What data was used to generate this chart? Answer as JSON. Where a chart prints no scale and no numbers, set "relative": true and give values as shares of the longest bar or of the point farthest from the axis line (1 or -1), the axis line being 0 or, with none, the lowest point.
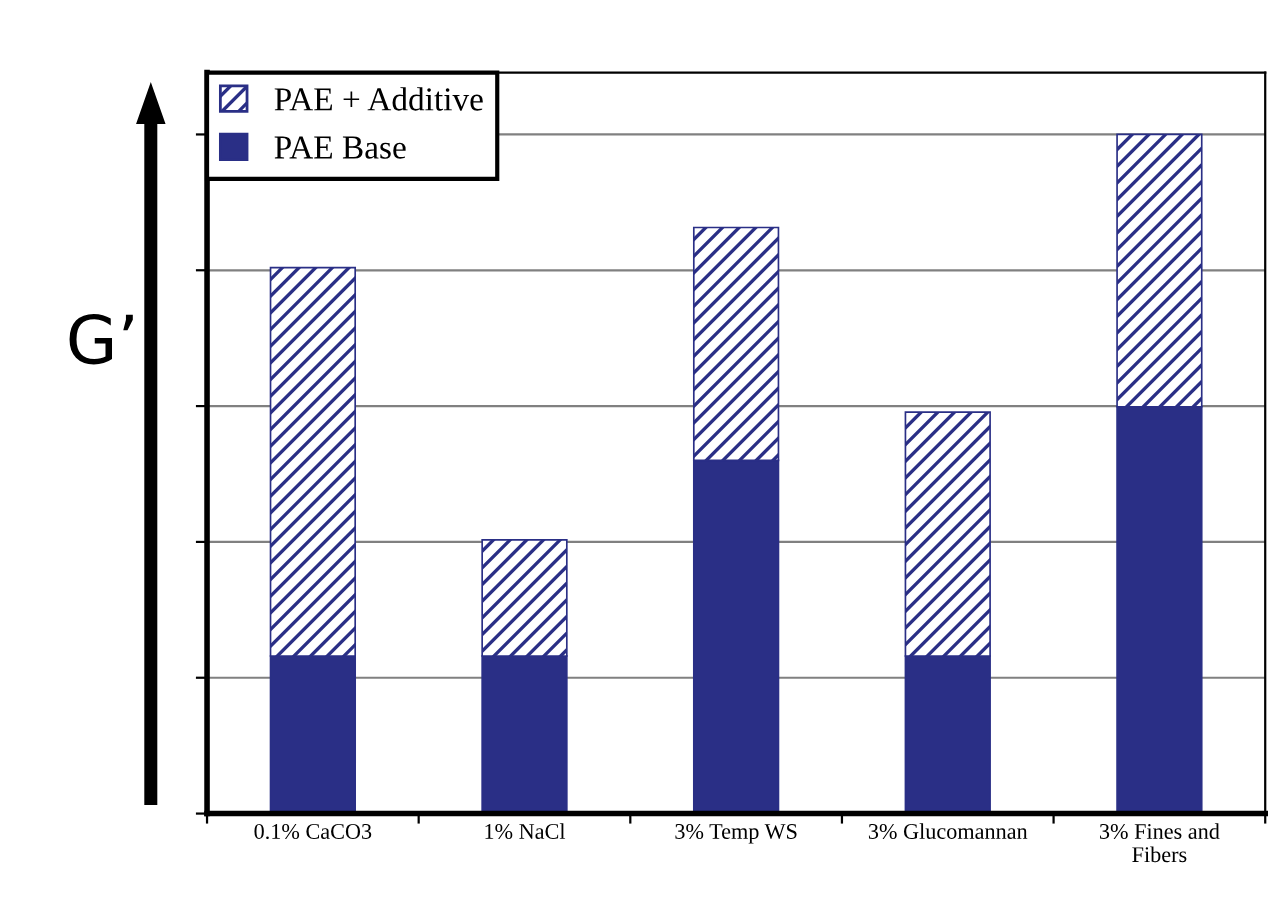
{
  "chart_data": {
    "type": "bar",
    "stacked": true,
    "relative": true,
    "ylabel": "G’",
    "categories": [
      "0.1% CaCO3",
      "1% NaCl",
      "3% Temp WS",
      "3% Glucomannan",
      "3% Fines and\nFibers"
    ],
    "series": [
      {
        "name": "PAE Base",
        "color": "#2a2f86",
        "values": [
          0.232,
          0.232,
          0.52,
          0.232,
          0.599
        ]
      },
      {
        "name": "PAE + Additive",
        "color": "#2a2f86",
        "values": [
          0.572,
          0.171,
          0.343,
          0.359,
          0.401
        ]
      }
    ],
    "grid": "y",
    "legend": "top left"
  }
}
